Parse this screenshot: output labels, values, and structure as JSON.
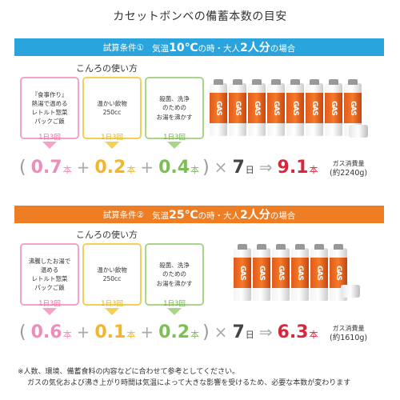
{
  "title": "カセットボンベの備蓄本数の目安",
  "sections": [
    {
      "condition_label": "試算条件①",
      "condition_pre": "気温",
      "temp": "10℃",
      "condition_mid": "の時・大人",
      "people": "2人分",
      "condition_post": "の場合",
      "subtitle": "こんろの使い方",
      "uses": [
        {
          "text": "『食事作り』\n熱湯で温める\nレトルト惣菜\nパックご飯",
          "freq": "1日3回",
          "color": "#f4a3c8"
        },
        {
          "text": "温かい飲物\n250cc",
          "freq": "1日3回",
          "color": "#f6cf5b"
        },
        {
          "text": "殺菌、洗浄\nのための\nお湯を沸かす",
          "freq": "1日3回",
          "color": "#a9d58b"
        }
      ],
      "values": [
        "0.7",
        "0.2",
        "0.4"
      ],
      "unit": "本",
      "days": "7",
      "days_unit": "日",
      "total": "9.1",
      "total_unit": "本",
      "gas_label": "ガス消費量",
      "gas_amount": "(約2240g)",
      "can_text": "GAS",
      "cans_count": 9
    },
    {
      "condition_label": "試算条件②",
      "condition_pre": "気温",
      "temp": "25℃",
      "condition_mid": "の時・大人",
      "people": "2人分",
      "condition_post": "の場合",
      "subtitle": "こんろの使い方",
      "uses": [
        {
          "text": "沸騰したお湯で\n温める\nレトルト惣菜\nパックご飯",
          "freq": "1日3回",
          "color": "#f4a3c8"
        },
        {
          "text": "温かい飲物\n250cc",
          "freq": "1日3回",
          "color": "#f6cf5b"
        },
        {
          "text": "殺菌、洗浄\nのための\nお湯を沸かす",
          "freq": "1日3回",
          "color": "#a9d58b"
        }
      ],
      "values": [
        "0.6",
        "0.1",
        "0.2"
      ],
      "unit": "本",
      "days": "7",
      "days_unit": "日",
      "total": "6.3",
      "total_unit": "本",
      "gas_label": "ガス消費量",
      "gas_amount": "(約1610g)",
      "can_text": "GAS",
      "cans_count": 6
    }
  ],
  "notes": [
    "※人数、環境、備蓄食料の内容などに合わせて参考としてください。",
    "ガスの気化および沸き上がり時間は気温によって大きな影響を受けるため、必要な本数が変わります"
  ]
}
